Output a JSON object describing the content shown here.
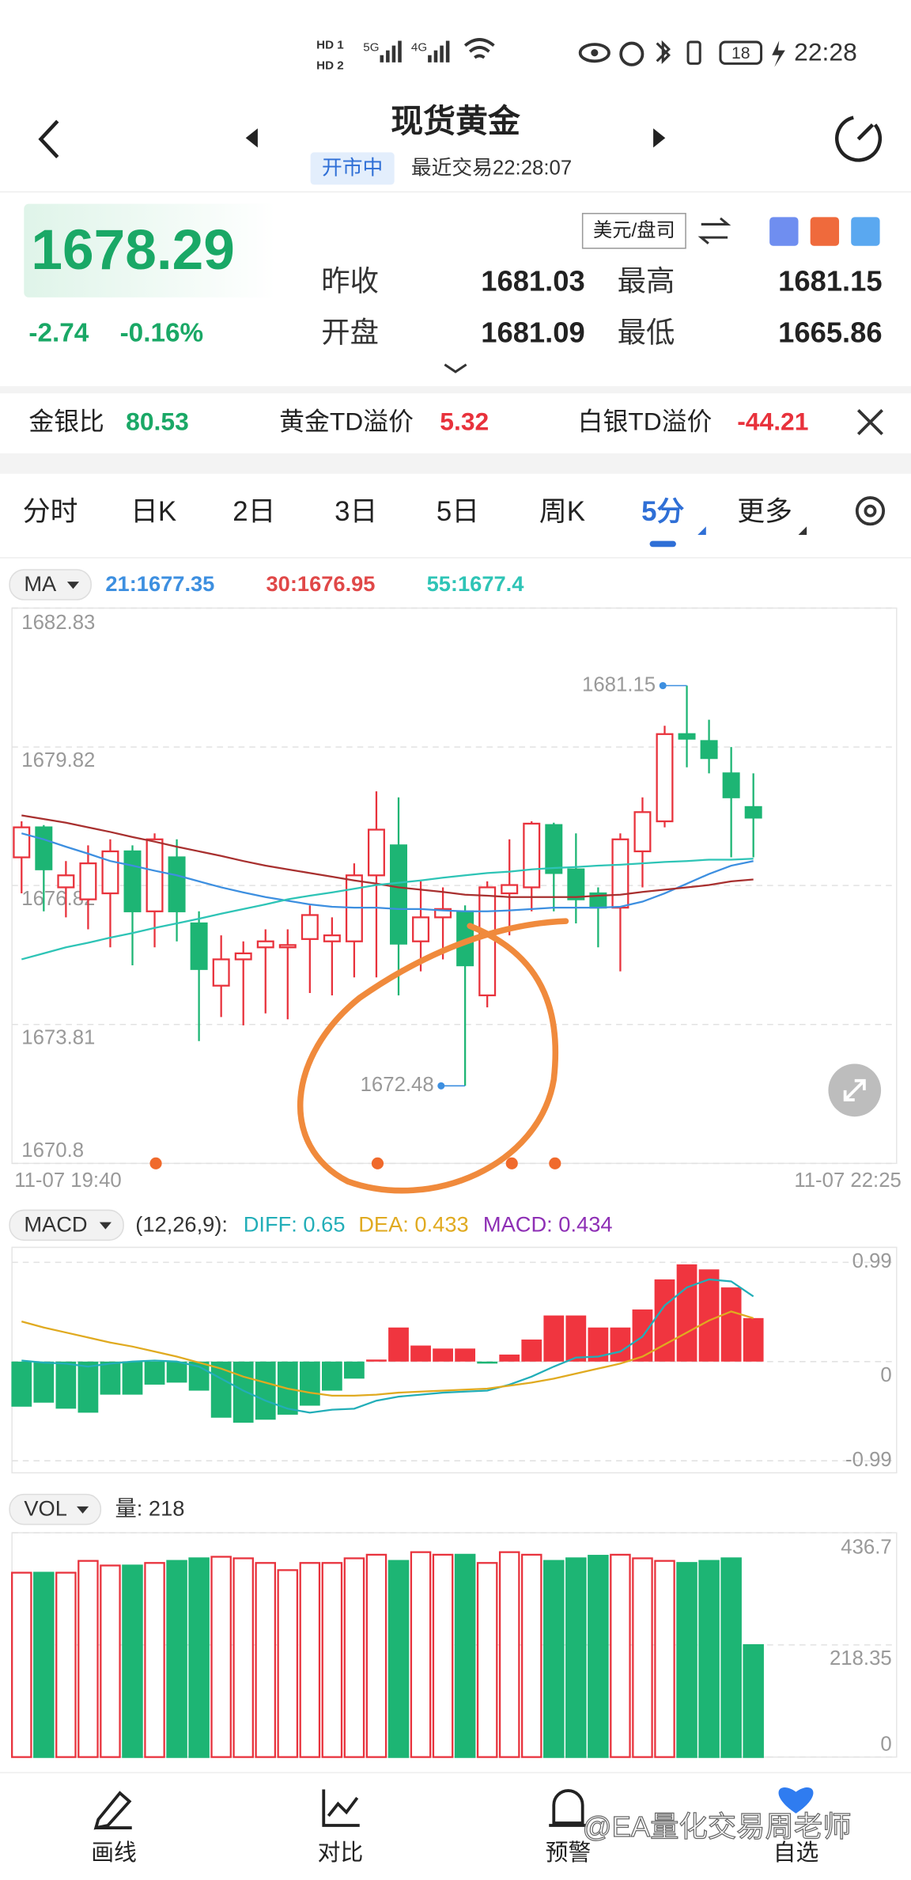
{
  "status_bar": {
    "time": "22:28",
    "battery": "18"
  },
  "header": {
    "title": "现货黄金",
    "status": "开市中",
    "last_trade": "最近交易22:28:07"
  },
  "quote": {
    "price": "1678.29",
    "change": "-2.74",
    "change_pct": "-0.16%",
    "unit": "美元/盘司",
    "fields": [
      {
        "label": "昨收",
        "value": "1681.03"
      },
      {
        "label": "最高",
        "value": "1681.15"
      },
      {
        "label": "开盘",
        "value": "1681.09"
      },
      {
        "label": "最低",
        "value": "1665.86"
      }
    ]
  },
  "ratios": [
    {
      "label": "金银比",
      "value": "80.53"
    },
    {
      "label": "黄金TD溢价",
      "value": "5.32"
    },
    {
      "label": "白银TD溢价",
      "value": "-44.21"
    }
  ],
  "tabs": [
    "分时",
    "日K",
    "2日",
    "3日",
    "5日",
    "周K",
    "5分",
    "更多"
  ],
  "active_tab": 6,
  "nav": [
    "画线",
    "对比",
    "预警",
    "自选"
  ],
  "watermark": "@EA量化交易周老师",
  "chart_data": [
    {
      "type": "candlestick",
      "indicator": "MA",
      "x_labels": [
        "11-07 19:40",
        "11-07 22:25"
      ],
      "ylim": [
        1670.8,
        1682.83
      ],
      "yticks": [
        1682.83,
        1679.82,
        1676.82,
        1673.81,
        1670.8
      ],
      "grid": true,
      "up_color": "#e8323c",
      "down_color": "#1db574",
      "candles": [
        {
          "open": 1677.43,
          "high": 1678.21,
          "low": 1676.65,
          "close": 1678.08
        },
        {
          "open": 1678.08,
          "high": 1678.13,
          "low": 1676.26,
          "close": 1677.17
        },
        {
          "open": 1676.78,
          "high": 1677.35,
          "low": 1676.13,
          "close": 1677.04
        },
        {
          "open": 1676.52,
          "high": 1677.69,
          "low": 1675.87,
          "close": 1677.3
        },
        {
          "open": 1676.65,
          "high": 1677.82,
          "low": 1675.48,
          "close": 1677.56
        },
        {
          "open": 1677.56,
          "high": 1677.69,
          "low": 1675.09,
          "close": 1676.26
        },
        {
          "open": 1676.26,
          "high": 1677.95,
          "low": 1675.48,
          "close": 1677.82
        },
        {
          "open": 1677.43,
          "high": 1677.82,
          "low": 1675.61,
          "close": 1676.26
        },
        {
          "open": 1676.0,
          "high": 1676.26,
          "low": 1673.45,
          "close": 1675.01
        },
        {
          "open": 1674.65,
          "high": 1675.74,
          "low": 1673.97,
          "close": 1675.22
        },
        {
          "open": 1675.22,
          "high": 1675.61,
          "low": 1673.79,
          "close": 1675.35
        },
        {
          "open": 1675.48,
          "high": 1675.87,
          "low": 1674.05,
          "close": 1675.61
        },
        {
          "open": 1675.48,
          "high": 1675.87,
          "low": 1673.92,
          "close": 1675.53
        },
        {
          "open": 1675.66,
          "high": 1676.39,
          "low": 1674.49,
          "close": 1676.18
        },
        {
          "open": 1675.61,
          "high": 1676.13,
          "low": 1674.44,
          "close": 1675.74
        },
        {
          "open": 1675.61,
          "high": 1677.3,
          "low": 1674.83,
          "close": 1677.04
        },
        {
          "open": 1677.04,
          "high": 1678.86,
          "low": 1674.83,
          "close": 1678.03
        },
        {
          "open": 1677.69,
          "high": 1678.73,
          "low": 1674.44,
          "close": 1675.56
        },
        {
          "open": 1675.61,
          "high": 1676.91,
          "low": 1674.96,
          "close": 1676.13
        },
        {
          "open": 1676.13,
          "high": 1676.78,
          "low": 1675.22,
          "close": 1676.31
        },
        {
          "open": 1676.26,
          "high": 1676.39,
          "low": 1672.48,
          "close": 1675.09
        },
        {
          "open": 1674.44,
          "high": 1676.91,
          "low": 1674.18,
          "close": 1676.78
        },
        {
          "open": 1676.65,
          "high": 1677.82,
          "low": 1675.74,
          "close": 1676.83
        },
        {
          "open": 1676.78,
          "high": 1678.21,
          "low": 1676.26,
          "close": 1678.16
        },
        {
          "open": 1678.13,
          "high": 1678.18,
          "low": 1676.26,
          "close": 1677.09
        },
        {
          "open": 1677.17,
          "high": 1677.95,
          "low": 1676.0,
          "close": 1676.52
        },
        {
          "open": 1676.65,
          "high": 1676.78,
          "low": 1675.48,
          "close": 1676.34
        },
        {
          "open": 1676.34,
          "high": 1677.95,
          "low": 1674.96,
          "close": 1677.82
        },
        {
          "open": 1677.56,
          "high": 1678.73,
          "low": 1676.78,
          "close": 1678.41
        },
        {
          "open": 1678.21,
          "high": 1680.28,
          "low": 1678.08,
          "close": 1680.1
        },
        {
          "open": 1680.1,
          "high": 1681.15,
          "low": 1679.38,
          "close": 1680.0
        },
        {
          "open": 1679.95,
          "high": 1680.41,
          "low": 1679.25,
          "close": 1679.58
        },
        {
          "open": 1679.25,
          "high": 1679.82,
          "low": 1677.43,
          "close": 1678.73
        },
        {
          "open": 1678.52,
          "high": 1679.25,
          "low": 1677.43,
          "close": 1678.29
        }
      ],
      "series": [
        {
          "name": "21:1677.35",
          "color": "#3d8fe0",
          "line_color": "#3d8fe0",
          "values": [
            1677.95,
            1677.82,
            1677.66,
            1677.51,
            1677.35,
            1677.25,
            1677.14,
            1677.04,
            1676.91,
            1676.78,
            1676.67,
            1676.57,
            1676.49,
            1676.41,
            1676.36,
            1676.34,
            1676.34,
            1676.31,
            1676.31,
            1676.28,
            1676.26,
            1676.26,
            1676.28,
            1676.31,
            1676.34,
            1676.34,
            1676.34,
            1676.36,
            1676.47,
            1676.65,
            1676.86,
            1677.07,
            1677.25,
            1677.35
          ]
        },
        {
          "name": "30:1676.95",
          "color": "#e04848",
          "line_color": "#a8302f",
          "values": [
            1678.34,
            1678.26,
            1678.18,
            1678.08,
            1677.98,
            1677.87,
            1677.77,
            1677.66,
            1677.56,
            1677.46,
            1677.35,
            1677.25,
            1677.17,
            1677.09,
            1677.01,
            1676.93,
            1676.86,
            1676.78,
            1676.73,
            1676.68,
            1676.62,
            1676.6,
            1676.57,
            1676.57,
            1676.57,
            1676.57,
            1676.6,
            1676.62,
            1676.68,
            1676.73,
            1676.78,
            1676.83,
            1676.91,
            1676.95
          ]
        },
        {
          "name": "55:1677.4",
          "color": "#2ec4b6",
          "line_color": "#2ec4b6",
          "values": [
            1675.22,
            1675.35,
            1675.48,
            1675.58,
            1675.69,
            1675.79,
            1675.9,
            1676.0,
            1676.1,
            1676.21,
            1676.31,
            1676.41,
            1676.52,
            1676.6,
            1676.67,
            1676.75,
            1676.83,
            1676.88,
            1676.93,
            1676.99,
            1677.04,
            1677.09,
            1677.12,
            1677.17,
            1677.2,
            1677.22,
            1677.25,
            1677.27,
            1677.3,
            1677.33,
            1677.35,
            1677.38,
            1677.38,
            1677.4
          ]
        }
      ]
    },
    {
      "type": "macd",
      "indicator": "MACD",
      "params": "(12,26,9):",
      "ylim": [
        -1.11,
        1.14
      ],
      "yticks": [
        0.99,
        0,
        -0.99
      ],
      "up_color": "#f0353f",
      "down_color": "#1db574",
      "series": [
        {
          "name": "DIFF: 0.65",
          "color": "#22aeb8",
          "kind": "line",
          "values": [
            0.01,
            -0.01,
            -0.02,
            -0.05,
            -0.02,
            0,
            0.01,
            0,
            -0.05,
            -0.17,
            -0.29,
            -0.39,
            -0.47,
            -0.51,
            -0.48,
            -0.47,
            -0.39,
            -0.35,
            -0.33,
            -0.31,
            -0.3,
            -0.29,
            -0.23,
            -0.15,
            -0.05,
            0.04,
            0.05,
            0.1,
            0.25,
            0.56,
            0.74,
            0.82,
            0.8,
            0.65
          ]
        },
        {
          "name": "DEA: 0.433",
          "color": "#e0aa20",
          "kind": "line",
          "values": [
            0.4,
            0.34,
            0.29,
            0.24,
            0.19,
            0.15,
            0.1,
            0.05,
            -0.01,
            -0.07,
            -0.15,
            -0.21,
            -0.27,
            -0.31,
            -0.34,
            -0.34,
            -0.33,
            -0.31,
            -0.3,
            -0.29,
            -0.28,
            -0.27,
            -0.24,
            -0.21,
            -0.17,
            -0.12,
            -0.07,
            -0.02,
            0.05,
            0.17,
            0.29,
            0.41,
            0.5,
            0.433
          ]
        },
        {
          "name": "MACD: 0.434",
          "color": "#8e2fb5",
          "kind": "bar",
          "values": [
            -0.45,
            -0.41,
            -0.47,
            -0.51,
            -0.33,
            -0.33,
            -0.23,
            -0.21,
            -0.29,
            -0.56,
            -0.61,
            -0.58,
            -0.53,
            -0.44,
            -0.29,
            -0.17,
            0.02,
            0.34,
            0.16,
            0.13,
            0.13,
            -0.02,
            0.07,
            0.22,
            0.46,
            0.46,
            0.34,
            0.34,
            0.52,
            0.82,
            0.97,
            0.92,
            0.74,
            0.434
          ]
        }
      ]
    },
    {
      "type": "bar",
      "indicator": "VOL",
      "label": "量: 218",
      "ylim": [
        0,
        436.7
      ],
      "yticks": [
        436.7,
        218.35,
        0
      ],
      "grid": true,
      "values": [
        359,
        359,
        359,
        382,
        373,
        373,
        378,
        382,
        387,
        390,
        387,
        378,
        364,
        378,
        378,
        387,
        394,
        382,
        399,
        394,
        394,
        378,
        399,
        394,
        382,
        387,
        392,
        394,
        387,
        382,
        378,
        382,
        387,
        218
      ]
    }
  ]
}
